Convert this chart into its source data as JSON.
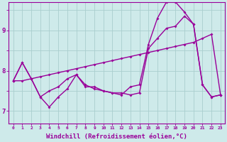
{
  "background_color": "#ceeaea",
  "grid_color": "#aacece",
  "line_color": "#990099",
  "marker": "D",
  "markersize": 2,
  "linewidth": 1.0,
  "xlabel": "Windchill (Refroidissement éolien,°C)",
  "xlabel_fontsize": 6.5,
  "xtick_labels": [
    "0",
    "1",
    "2",
    "3",
    "4",
    "5",
    "6",
    "7",
    "8",
    "9",
    "10",
    "11",
    "12",
    "13",
    "14",
    "15",
    "16",
    "17",
    "18",
    "19",
    "20",
    "21",
    "22",
    "23"
  ],
  "ylim": [
    6.7,
    9.7
  ],
  "xlim": [
    -0.5,
    23.5
  ],
  "series1_x": [
    0,
    1,
    2,
    3,
    4,
    5,
    6,
    7,
    8,
    9,
    10,
    11,
    12,
    13,
    14,
    15,
    16,
    17,
    18,
    19,
    20,
    21,
    22,
    23
  ],
  "series1_y": [
    7.75,
    8.2,
    7.8,
    7.35,
    7.1,
    7.35,
    7.55,
    7.9,
    7.6,
    7.6,
    7.5,
    7.45,
    7.45,
    7.4,
    7.45,
    8.55,
    8.8,
    9.05,
    9.1,
    9.35,
    9.15,
    7.65,
    7.35,
    7.4
  ],
  "series2_x": [
    0,
    1,
    2,
    3,
    4,
    5,
    6,
    7,
    8,
    9,
    10,
    11,
    12,
    13,
    14,
    15,
    16,
    17,
    18,
    19,
    20,
    21,
    22,
    23
  ],
  "series2_y": [
    7.75,
    8.2,
    7.8,
    7.35,
    7.5,
    7.6,
    7.8,
    7.9,
    7.65,
    7.55,
    7.5,
    7.45,
    7.4,
    7.6,
    7.65,
    8.65,
    9.3,
    9.7,
    9.7,
    9.45,
    9.15,
    7.65,
    7.35,
    7.4
  ],
  "series3_x": [
    0,
    1,
    2,
    3,
    4,
    5,
    6,
    7,
    8,
    9,
    10,
    11,
    12,
    13,
    14,
    15,
    16,
    17,
    18,
    19,
    20,
    21,
    22,
    23
  ],
  "series3_y": [
    7.75,
    7.75,
    7.8,
    7.85,
    7.9,
    7.95,
    8.0,
    8.05,
    8.1,
    8.15,
    8.2,
    8.25,
    8.3,
    8.35,
    8.4,
    8.45,
    8.5,
    8.55,
    8.6,
    8.65,
    8.7,
    8.8,
    8.9,
    7.4
  ]
}
